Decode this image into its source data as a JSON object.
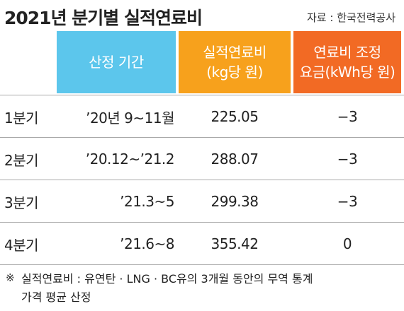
{
  "header": {
    "title": "2021년 분기별 실적연료비",
    "source": "자료 : 한국전력공사"
  },
  "table": {
    "columns": [
      "산정 기간",
      "실적연료비\n(kg당 원)",
      "연료비 조정\n요금(kWh당 원)"
    ],
    "rows": [
      [
        "1분기",
        "’20년 9~11월",
        "225.05",
        "−3"
      ],
      [
        "2분기",
        "’20.12~’21.2",
        "288.07",
        "−3"
      ],
      [
        "3분기",
        "’21.3~5",
        "299.38",
        "−3"
      ],
      [
        "4분기",
        "’21.6~8",
        "355.42",
        "0"
      ]
    ]
  },
  "footnote": {
    "mark": "※",
    "text": "실적연료비 : 유연탄 · LNG · BC유의 3개월 동안의 무역 통계\n가격 평균 산정"
  }
}
